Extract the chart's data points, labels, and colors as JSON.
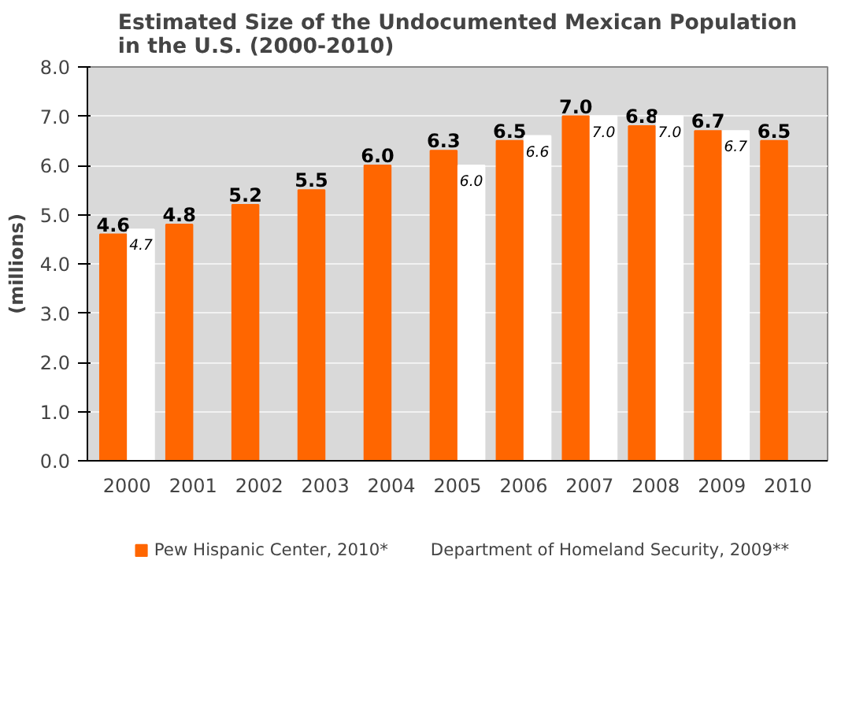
{
  "chart_data": {
    "type": "bar",
    "title": "Estimated Size of the Undocumented Mexican Population\nin the U.S. (2000-2010)",
    "ylabel": "(millions)",
    "categories": [
      "2000",
      "2001",
      "2002",
      "2003",
      "2004",
      "2005",
      "2006",
      "2007",
      "2008",
      "2009",
      "2010"
    ],
    "series": [
      {
        "name": "Pew Hispanic Center, 2010*",
        "color": "#ff6600",
        "values": [
          4.6,
          4.8,
          5.2,
          5.5,
          6.0,
          6.3,
          6.5,
          7.0,
          6.8,
          6.7,
          6.5
        ],
        "value_labels": [
          "4.6",
          "4.8",
          "5.2",
          "5.5",
          "6.0",
          "6.3",
          "6.5",
          "7.0",
          "6.8",
          "6.7",
          "6.5"
        ]
      },
      {
        "name": "Department of Homeland Security, 2009**",
        "color": "#ffffff",
        "values": [
          4.7,
          null,
          null,
          null,
          null,
          6.0,
          6.6,
          7.0,
          7.0,
          6.7,
          null
        ],
        "value_labels": [
          "4.7",
          null,
          null,
          null,
          null,
          "6.0",
          "6.6",
          "7.0",
          "7.0",
          "6.7",
          null
        ]
      }
    ],
    "ylim": [
      0,
      8
    ],
    "yticks": [
      {
        "value": 0,
        "label": "0.0"
      },
      {
        "value": 1,
        "label": "1.0"
      },
      {
        "value": 2,
        "label": "2.0"
      },
      {
        "value": 3,
        "label": "3.0"
      },
      {
        "value": 4,
        "label": "4.0"
      },
      {
        "value": 5,
        "label": "5.0"
      },
      {
        "value": 6,
        "label": "6.0"
      },
      {
        "value": 7,
        "label": "7.0"
      },
      {
        "value": 8,
        "label": "8.0"
      }
    ],
    "grid": "y",
    "legend": "bottom"
  }
}
